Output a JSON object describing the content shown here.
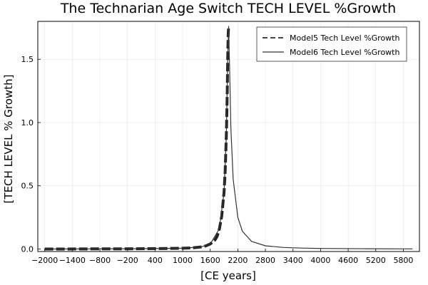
{
  "chart_data": {
    "type": "line",
    "title": "The Technarian Age Switch TECH LEVEL %Growth",
    "xlabel": "[CE years]",
    "ylabel": "[TECH LEVEL % Growth]",
    "xlim": [
      -2150,
      6150
    ],
    "ylim": [
      -0.02,
      1.8
    ],
    "xticks": [
      -2000,
      -1400,
      -800,
      -200,
      400,
      1000,
      1600,
      2200,
      2800,
      3400,
      4000,
      4600,
      5200,
      5800
    ],
    "xtick_labels": [
      "−2000",
      "−1400",
      "−800",
      "−200",
      "400",
      "1000",
      "1600",
      "2200",
      "2800",
      "3400",
      "4000",
      "4600",
      "5200",
      "5800"
    ],
    "yticks": [
      0.0,
      0.5,
      1.0,
      1.5
    ],
    "ytick_labels": [
      "0.0",
      "0.5",
      "1.0",
      "1.5"
    ],
    "grid": true,
    "legend_position": "top-right",
    "series": [
      {
        "name": "Model5 Tech Level %Growth",
        "style": "dashed",
        "x": [
          -2000,
          -1500,
          -1000,
          -500,
          0,
          500,
          1000,
          1200,
          1400,
          1500,
          1600,
          1700,
          1750,
          1800,
          1850,
          1900,
          1925,
          1950,
          1960,
          1970,
          1980,
          1990,
          2000
        ],
        "y": [
          0.0,
          0.0,
          0.001,
          0.001,
          0.002,
          0.003,
          0.006,
          0.009,
          0.016,
          0.024,
          0.04,
          0.07,
          0.1,
          0.16,
          0.26,
          0.45,
          0.62,
          0.9,
          1.05,
          1.25,
          1.5,
          1.7,
          1.76
        ]
      },
      {
        "name": "Model6 Tech Level %Growth",
        "style": "solid",
        "x": [
          -2000,
          -1000,
          0,
          1000,
          1400,
          1600,
          1800,
          1900,
          1950,
          1980,
          2000,
          2020,
          2050,
          2100,
          2200,
          2300,
          2500,
          2800,
          3200,
          3600,
          4000,
          5000,
          6000
        ],
        "y": [
          0.0,
          0.001,
          0.002,
          0.006,
          0.016,
          0.04,
          0.16,
          0.45,
          0.9,
          1.5,
          1.76,
          1.45,
          0.95,
          0.55,
          0.25,
          0.14,
          0.06,
          0.025,
          0.012,
          0.007,
          0.004,
          0.002,
          0.001
        ]
      }
    ]
  }
}
